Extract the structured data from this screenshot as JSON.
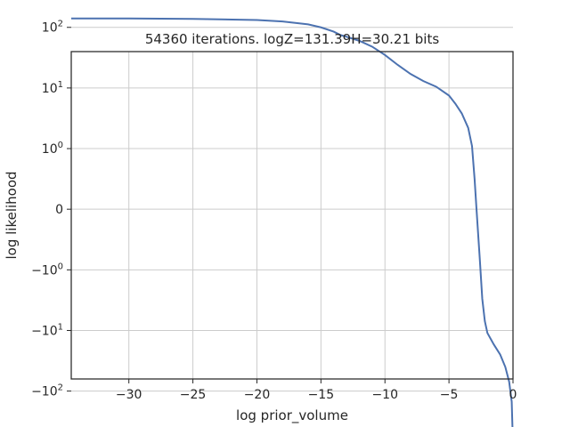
{
  "chart_data": {
    "type": "line",
    "title": "54360 iterations. logZ=131.39H=30.21 bits",
    "xlabel": "log prior_volume",
    "ylabel": "log likelihood",
    "xlim": [
      -34.5,
      0
    ],
    "y_scale": "symlog",
    "y_linthresh": 1,
    "ylim_symlog_display": [
      -2.8,
      2.6
    ],
    "grid": true,
    "line_color": "#4c72b0",
    "x_ticks": [
      {
        "value": -30,
        "label": "−30"
      },
      {
        "value": -25,
        "label": "−25"
      },
      {
        "value": -20,
        "label": "−20"
      },
      {
        "value": -15,
        "label": "−15"
      },
      {
        "value": -10,
        "label": "−10"
      },
      {
        "value": -5,
        "label": "−5"
      },
      {
        "value": 0,
        "label": "0"
      }
    ],
    "y_ticks": [
      {
        "value": 100,
        "base": "10",
        "exp": "2",
        "sign": ""
      },
      {
        "value": 10,
        "base": "10",
        "exp": "1",
        "sign": ""
      },
      {
        "value": 1,
        "base": "10",
        "exp": "0",
        "sign": ""
      },
      {
        "value": 0,
        "base": "0",
        "exp": "",
        "sign": ""
      },
      {
        "value": -1,
        "base": "10",
        "exp": "0",
        "sign": "−"
      },
      {
        "value": -10,
        "base": "10",
        "exp": "1",
        "sign": "−"
      },
      {
        "value": -100,
        "base": "10",
        "exp": "2",
        "sign": "−"
      }
    ],
    "series": [
      {
        "x": [
          -34.5,
          -30,
          -25,
          -20,
          -18,
          -16,
          -15,
          -14,
          -13.5,
          -13,
          -12,
          -11,
          -10,
          -9,
          -8,
          -7,
          -6,
          -5,
          -4.5,
          -4,
          -3.5,
          -3.2,
          -3.0,
          -2.85,
          -2.6,
          -2.4,
          -2.2,
          -2.0,
          -1.5,
          -1.0,
          -0.6,
          -0.3,
          -0.1,
          0
        ],
        "y": [
          140,
          140,
          138,
          132,
          125,
          112,
          100,
          85,
          75,
          70,
          60,
          48,
          35,
          24,
          17,
          13,
          10.5,
          7.5,
          5.5,
          3.8,
          2.2,
          1.1,
          0.5,
          0,
          -0.8,
          -3,
          -7,
          -11,
          -17,
          -25,
          -40,
          -70,
          -150,
          -800
        ]
      }
    ]
  }
}
